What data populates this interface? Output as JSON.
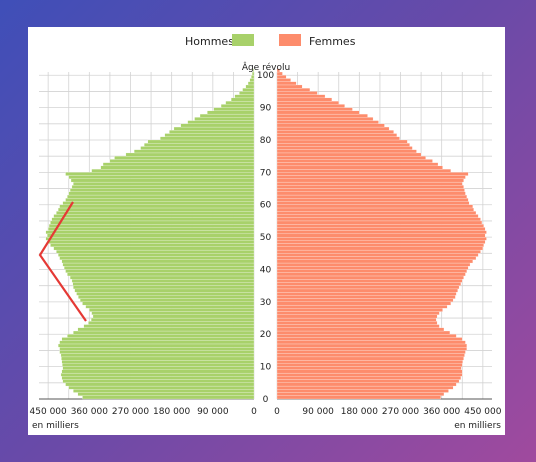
{
  "chart_data": {
    "type": "bar",
    "orientation": "horizontal-pyramid",
    "legend": [
      {
        "label": "Hommes",
        "color": "#a8d16a"
      },
      {
        "label": "Femmes",
        "color": "#fd8c6c"
      }
    ],
    "axis_title": "Âge révolu",
    "unit_label_left": "en milliers",
    "unit_label_right": "en milliers",
    "x_ticks_left": [
      "450 000",
      "360 000",
      "270 000",
      "180 000",
      "90 000",
      "0"
    ],
    "x_ticks_right": [
      "0",
      "90 000",
      "180 000",
      "270 000",
      "360 000",
      "450 000"
    ],
    "y_ticks": [
      "0",
      "10",
      "20",
      "30",
      "40",
      "50",
      "60",
      "70",
      "80",
      "90",
      "100"
    ],
    "xlim": [
      0,
      470000
    ],
    "ylim": [
      0,
      101
    ],
    "grid": true,
    "ages": [
      0,
      1,
      2,
      3,
      4,
      5,
      6,
      7,
      8,
      9,
      10,
      11,
      12,
      13,
      14,
      15,
      16,
      17,
      18,
      19,
      20,
      21,
      22,
      23,
      24,
      25,
      26,
      27,
      28,
      29,
      30,
      31,
      32,
      33,
      34,
      35,
      36,
      37,
      38,
      39,
      40,
      41,
      42,
      43,
      44,
      45,
      46,
      47,
      48,
      49,
      50,
      51,
      52,
      53,
      54,
      55,
      56,
      57,
      58,
      59,
      60,
      61,
      62,
      63,
      64,
      65,
      66,
      67,
      68,
      69,
      70,
      71,
      72,
      73,
      74,
      75,
      76,
      77,
      78,
      79,
      80,
      81,
      82,
      83,
      84,
      85,
      86,
      87,
      88,
      89,
      90,
      91,
      92,
      93,
      94,
      95,
      96,
      97,
      98,
      99,
      100,
      101
    ],
    "series": [
      {
        "name": "Hommes",
        "values": [
          375000,
          385000,
          395000,
          405000,
          412000,
          418000,
          420000,
          422000,
          420000,
          418000,
          419000,
          420000,
          421000,
          422000,
          425000,
          425000,
          428000,
          425000,
          420000,
          408000,
          395000,
          385000,
          372000,
          362000,
          356000,
          352000,
          355000,
          360000,
          368000,
          375000,
          380000,
          384000,
          388000,
          392000,
          395000,
          396000,
          398000,
          402000,
          408000,
          412000,
          415000,
          418000,
          420000,
          425000,
          428000,
          432000,
          438000,
          445000,
          450000,
          455000,
          452000,
          455000,
          450000,
          448000,
          445000,
          442000,
          438000,
          432000,
          428000,
          425000,
          418000,
          412000,
          408000,
          405000,
          402000,
          398000,
          395000,
          400000,
          405000,
          412000,
          355000,
          335000,
          330000,
          315000,
          305000,
          280000,
          262000,
          248000,
          240000,
          232000,
          205000,
          195000,
          185000,
          175000,
          160000,
          145000,
          130000,
          118000,
          102000,
          88000,
          72000,
          62000,
          50000,
          42000,
          32000,
          25000,
          18000,
          13000,
          9000,
          6000,
          4000,
          2000
        ]
      },
      {
        "name": "Femmes",
        "values": [
          358000,
          365000,
          375000,
          385000,
          392000,
          398000,
          402000,
          405000,
          405000,
          403000,
          405000,
          406000,
          408000,
          410000,
          412000,
          415000,
          415000,
          412000,
          405000,
          392000,
          378000,
          365000,
          355000,
          350000,
          348000,
          350000,
          355000,
          362000,
          372000,
          380000,
          385000,
          390000,
          392000,
          395000,
          398000,
          402000,
          405000,
          408000,
          412000,
          415000,
          418000,
          422000,
          428000,
          435000,
          440000,
          445000,
          450000,
          452000,
          455000,
          458000,
          455000,
          458000,
          455000,
          452000,
          448000,
          445000,
          440000,
          435000,
          430000,
          428000,
          420000,
          418000,
          415000,
          412000,
          410000,
          408000,
          405000,
          408000,
          412000,
          418000,
          380000,
          362000,
          352000,
          340000,
          325000,
          315000,
          305000,
          296000,
          290000,
          285000,
          268000,
          262000,
          255000,
          245000,
          235000,
          222000,
          210000,
          198000,
          180000,
          165000,
          148000,
          135000,
          120000,
          105000,
          88000,
          72000,
          55000,
          42000,
          30000,
          20000,
          12000,
          6000
        ]
      }
    ]
  }
}
